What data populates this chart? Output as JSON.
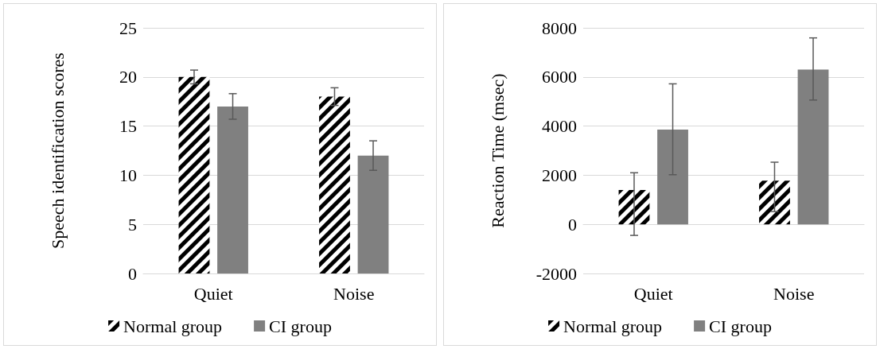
{
  "chart_data": [
    {
      "type": "bar",
      "ylabel": "Speech identification scores",
      "categories": [
        "Quiet",
        "Noise"
      ],
      "ylim": [
        0,
        25
      ],
      "yticks": [
        0,
        5,
        10,
        15,
        20,
        25
      ],
      "grid": "y",
      "legend": "bottom",
      "series": [
        {
          "name": "Normal group",
          "color": "#000000",
          "values": [
            20,
            18
          ],
          "errors": [
            [
              19.3,
              20.7
            ],
            [
              17.1,
              18.9
            ]
          ]
        },
        {
          "name": "CI group",
          "color": "#808080",
          "values": [
            17,
            12
          ],
          "errors": [
            [
              15.7,
              18.3
            ],
            [
              10.5,
              13.5
            ]
          ]
        }
      ]
    },
    {
      "type": "bar",
      "ylabel": "Reaction Time (msec)",
      "categories": [
        "Quiet",
        "Noise"
      ],
      "ylim": [
        -2000,
        8000
      ],
      "yticks": [
        -2000,
        0,
        2000,
        4000,
        6000,
        8000
      ],
      "grid": "y",
      "legend": "bottom",
      "series": [
        {
          "name": "Normal group",
          "color": "#000000",
          "values": [
            1400,
            1780
          ],
          "errors": [
            [
              -450,
              2100
            ],
            [
              520,
              2530
            ]
          ]
        },
        {
          "name": "CI group",
          "color": "#808080",
          "values": [
            3860,
            6300
          ],
          "errors": [
            [
              2020,
              5720
            ],
            [
              5060,
              7590
            ]
          ]
        }
      ]
    }
  ]
}
